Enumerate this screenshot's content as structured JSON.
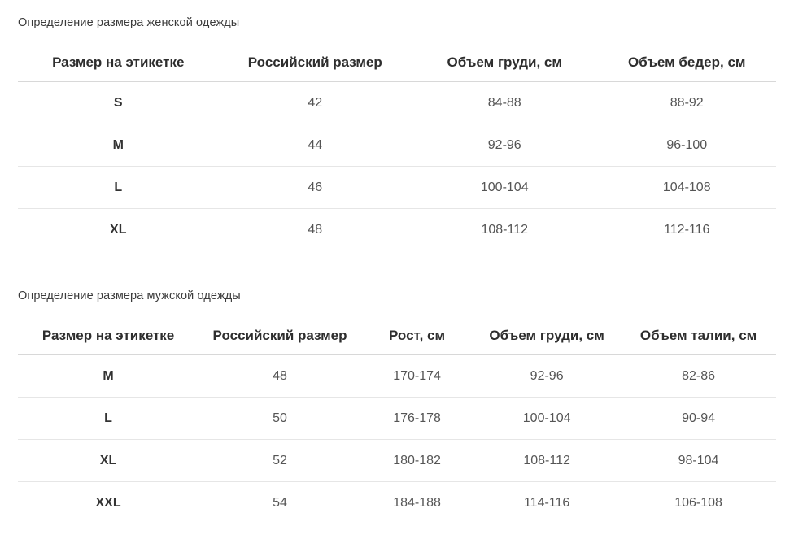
{
  "page": {
    "background": "#ffffff"
  },
  "colors": {
    "title_text": "#3b3b3b",
    "header_text": "#2e2e2e",
    "cell_text": "#555555",
    "first_column_text": "#333333",
    "header_border": "#d8d8d8",
    "row_divider": "#e6e6e6"
  },
  "tables": [
    {
      "id": "women",
      "title": "Определение размера женской одежды",
      "columns": [
        "Размер на этикетке",
        "Российский размер",
        "Объем груди, см",
        "Объем бедер, см"
      ],
      "rows": [
        [
          "S",
          "42",
          "84-88",
          "88-92"
        ],
        [
          "M",
          "44",
          "92-96",
          "96-100"
        ],
        [
          "L",
          "46",
          "100-104",
          "104-108"
        ],
        [
          "XL",
          "48",
          "108-112",
          "112-116"
        ]
      ]
    },
    {
      "id": "men",
      "title": "Определение размера мужской одежды",
      "columns": [
        "Размер на этикетке",
        "Российский размер",
        "Рост, см",
        "Объем груди, см",
        "Объем талии, см"
      ],
      "rows": [
        [
          "M",
          "48",
          "170-174",
          "92-96",
          "82-86"
        ],
        [
          "L",
          "50",
          "176-178",
          "100-104",
          "90-94"
        ],
        [
          "XL",
          "52",
          "180-182",
          "108-112",
          "98-104"
        ],
        [
          "XXL",
          "54",
          "184-188",
          "114-116",
          "106-108"
        ]
      ]
    }
  ]
}
